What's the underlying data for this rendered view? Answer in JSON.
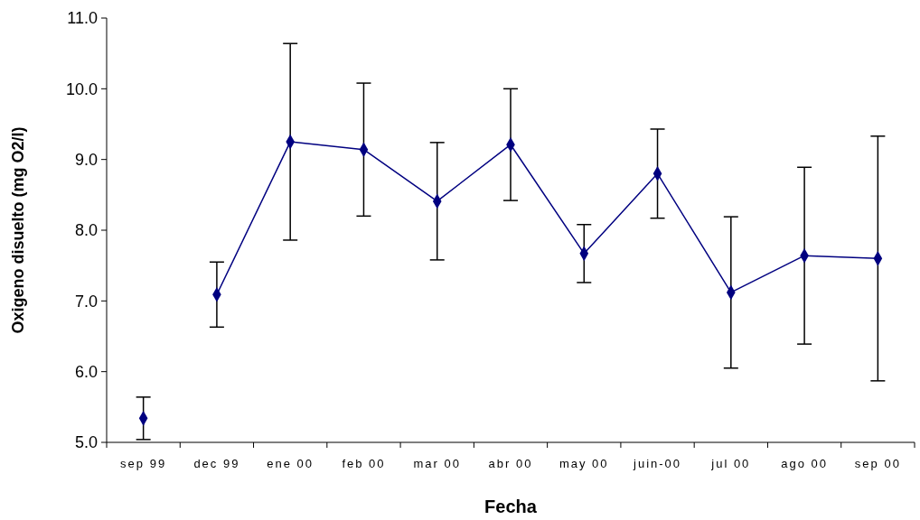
{
  "chart_data": {
    "type": "line",
    "xlabel": "Fecha",
    "ylabel": "Oxigeno disuelto (mg O2/l)",
    "categories": [
      "sep 99",
      "dec 99",
      "ene 00",
      "feb 00",
      "mar 00",
      "abr 00",
      "may 00",
      "juin-00",
      "jul 00",
      "ago 00",
      "sep 00"
    ],
    "series": [
      {
        "color": "#000080",
        "values": [
          null,
          7.09,
          9.25,
          9.14,
          8.41,
          9.21,
          7.67,
          8.8,
          7.12,
          7.64,
          7.6
        ],
        "errors": [
          null,
          0.46,
          1.39,
          0.94,
          0.83,
          0.79,
          0.41,
          0.63,
          1.07,
          1.25,
          1.73
        ]
      },
      {
        "type": "scatter",
        "color": "#000080",
        "values": [
          5.34,
          null,
          null,
          null,
          null,
          null,
          null,
          null,
          null,
          null,
          null
        ],
        "errors": [
          0.3,
          null,
          null,
          null,
          null,
          null,
          null,
          null,
          null,
          null,
          null
        ]
      }
    ],
    "ylim": [
      5,
      11
    ],
    "yticks": [
      {
        "value": 5,
        "label": "5.0"
      },
      {
        "value": 6,
        "label": "6.0"
      },
      {
        "value": 7,
        "label": "7.0"
      },
      {
        "value": 8,
        "label": "8.0"
      },
      {
        "value": 9,
        "label": "9.0"
      },
      {
        "value": 10,
        "label": "10.0"
      },
      {
        "value": 11,
        "label": "11.0"
      }
    ],
    "marker": "diamond",
    "grid": false
  }
}
